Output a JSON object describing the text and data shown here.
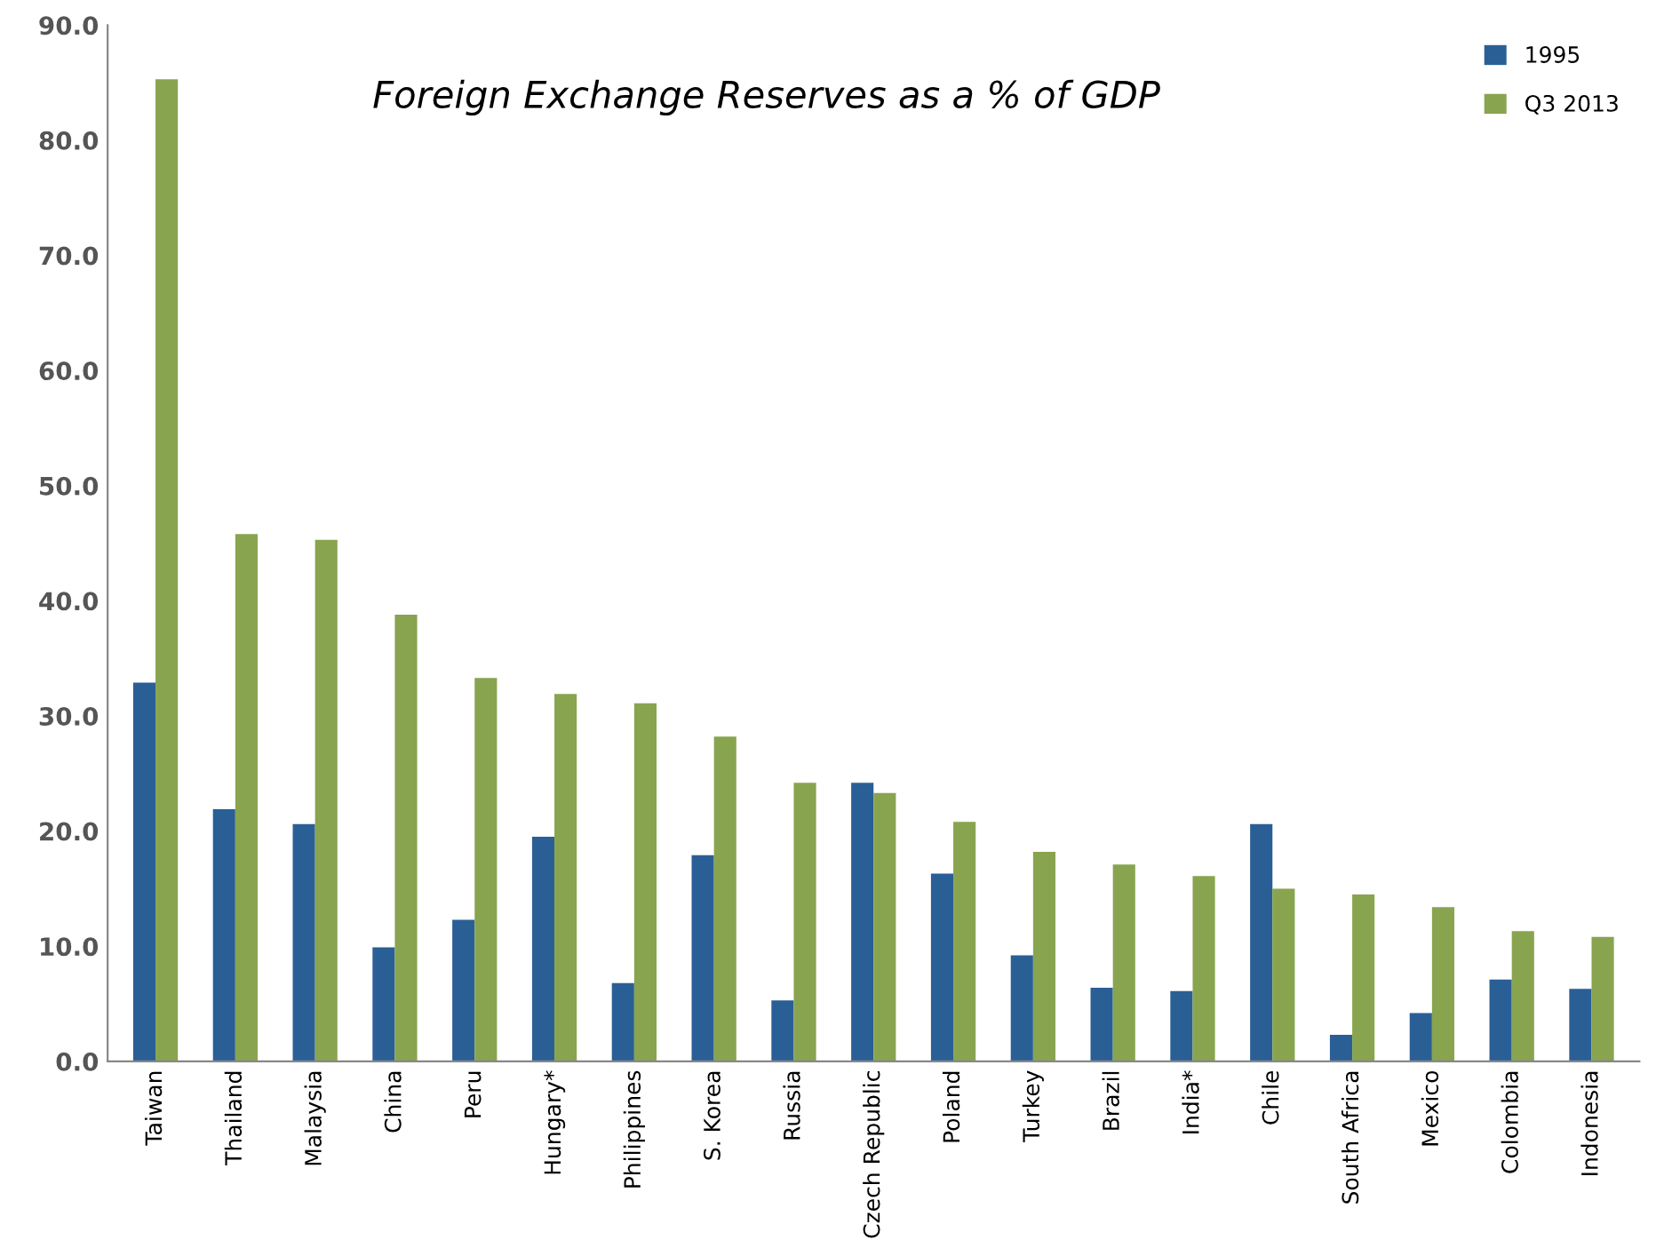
{
  "chart_data": {
    "type": "bar",
    "title": "Foreign Exchange Reserves as a % of GDP",
    "categories": [
      "Taiwan",
      "Thailand",
      "Malaysia",
      "China",
      "Peru",
      "Hungary*",
      "Philippines",
      "S. Korea",
      "Russia",
      "Czech Republic",
      "Poland",
      "Turkey",
      "Brazil",
      "India*",
      "Chile",
      "South Africa",
      "Mexico",
      "Colombia",
      "Indonesia"
    ],
    "series": [
      {
        "name": "1995",
        "color": "#2a5f96",
        "values": [
          32.9,
          21.9,
          20.6,
          9.9,
          12.3,
          19.5,
          6.8,
          17.9,
          5.3,
          24.2,
          16.3,
          9.2,
          6.4,
          6.1,
          20.6,
          2.3,
          4.2,
          7.1,
          6.3
        ]
      },
      {
        "name": "Q3 2013",
        "color": "#88a44f",
        "values": [
          85.3,
          45.8,
          45.3,
          38.8,
          33.3,
          31.9,
          31.1,
          28.2,
          24.2,
          23.3,
          20.8,
          18.2,
          17.1,
          16.1,
          15.0,
          14.5,
          13.4,
          11.3,
          10.8
        ]
      }
    ],
    "ylim": [
      0,
      90
    ],
    "yticks": [
      {
        "value": 0,
        "label": "0.0"
      },
      {
        "value": 10,
        "label": "10.0"
      },
      {
        "value": 20,
        "label": "20.0"
      },
      {
        "value": 30,
        "label": "30.0"
      },
      {
        "value": 40,
        "label": "40.0"
      },
      {
        "value": 50,
        "label": "50.0"
      },
      {
        "value": 60,
        "label": "60.0"
      },
      {
        "value": 70,
        "label": "70.0"
      },
      {
        "value": 80,
        "label": "80.0"
      },
      {
        "value": 90,
        "label": "90.0"
      }
    ],
    "grid": false,
    "legend": "top right"
  }
}
